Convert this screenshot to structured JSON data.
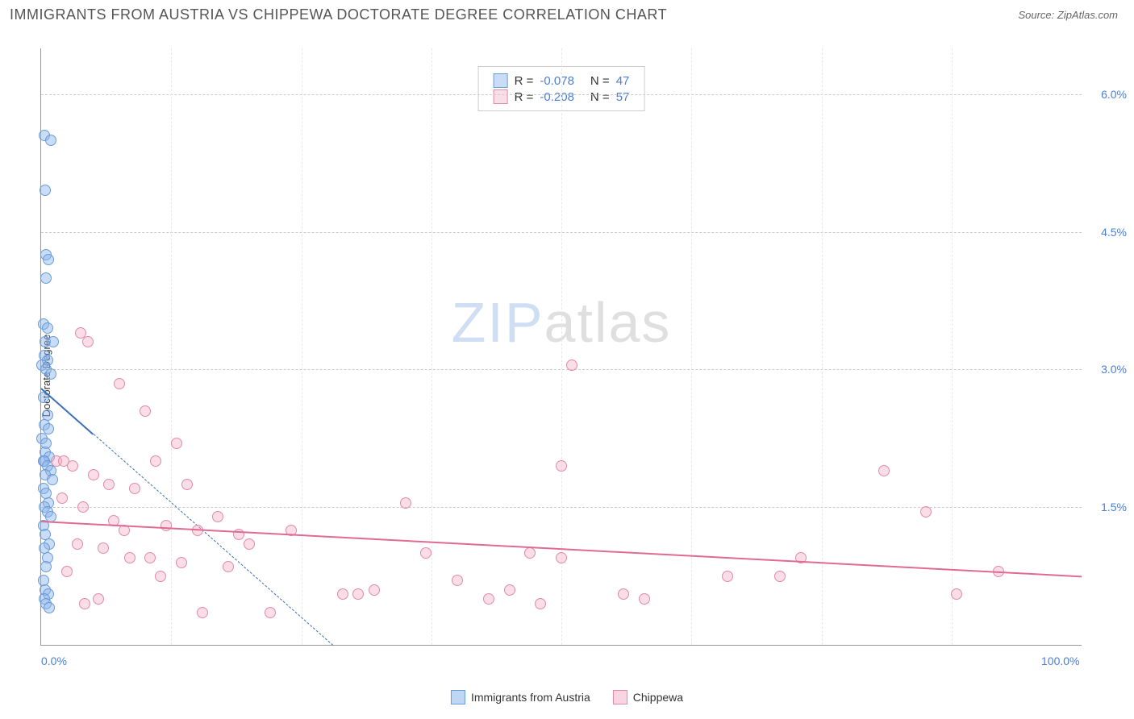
{
  "header": {
    "title": "IMMIGRANTS FROM AUSTRIA VS CHIPPEWA DOCTORATE DEGREE CORRELATION CHART",
    "source": "Source: ZipAtlas.com"
  },
  "ylabel": "Doctorate Degree",
  "watermark": {
    "zip": "ZIP",
    "atlas": "atlas"
  },
  "chart": {
    "type": "scatter",
    "xlim": [
      0,
      100
    ],
    "ylim": [
      0,
      6.5
    ],
    "background_color": "#ffffff",
    "grid_color": "#cccccc",
    "grid_color_v": "#e8e8e8",
    "xticks": [
      {
        "x": 0,
        "label": "0.0%"
      },
      {
        "x": 100,
        "label": "100.0%"
      }
    ],
    "vgrid_x": [
      12.5,
      25,
      37.5,
      50,
      62.5,
      75,
      87.5
    ],
    "yticks": [
      {
        "y": 1.5,
        "label": "1.5%"
      },
      {
        "y": 3.0,
        "label": "3.0%"
      },
      {
        "y": 4.5,
        "label": "4.5%"
      },
      {
        "y": 6.0,
        "label": "6.0%"
      }
    ],
    "series": [
      {
        "name": "Immigrants from Austria",
        "fill": "rgba(138,180,235,0.45)",
        "stroke": "#6b9bd8",
        "trend_color": "#3b6fb5",
        "R": "-0.078",
        "N": "47",
        "trend": {
          "x1": 0,
          "y1": 2.8,
          "x2": 5,
          "y2": 2.3
        },
        "trend_dash": {
          "x1": 5,
          "y1": 2.3,
          "x2": 28,
          "y2": 0
        },
        "points": [
          [
            0.3,
            5.55
          ],
          [
            0.9,
            5.5
          ],
          [
            0.4,
            4.95
          ],
          [
            0.5,
            4.25
          ],
          [
            0.7,
            4.2
          ],
          [
            0.5,
            4.0
          ],
          [
            0.2,
            3.5
          ],
          [
            0.6,
            3.45
          ],
          [
            0.4,
            3.3
          ],
          [
            1.2,
            3.3
          ],
          [
            0.3,
            3.15
          ],
          [
            0.6,
            3.1
          ],
          [
            0.1,
            3.05
          ],
          [
            0.5,
            3.0
          ],
          [
            0.9,
            2.95
          ],
          [
            0.2,
            2.7
          ],
          [
            0.6,
            2.5
          ],
          [
            0.3,
            2.4
          ],
          [
            0.7,
            2.35
          ],
          [
            0.1,
            2.25
          ],
          [
            0.5,
            2.2
          ],
          [
            0.4,
            2.1
          ],
          [
            0.8,
            2.05
          ],
          [
            0.2,
            2.0
          ],
          [
            0.3,
            2.0
          ],
          [
            0.6,
            1.95
          ],
          [
            0.9,
            1.9
          ],
          [
            0.4,
            1.85
          ],
          [
            1.1,
            1.8
          ],
          [
            0.2,
            1.7
          ],
          [
            0.5,
            1.65
          ],
          [
            0.7,
            1.55
          ],
          [
            0.3,
            1.5
          ],
          [
            0.6,
            1.45
          ],
          [
            0.9,
            1.4
          ],
          [
            0.2,
            1.3
          ],
          [
            0.4,
            1.2
          ],
          [
            0.8,
            1.1
          ],
          [
            0.3,
            1.05
          ],
          [
            0.6,
            0.95
          ],
          [
            0.5,
            0.85
          ],
          [
            0.2,
            0.7
          ],
          [
            0.4,
            0.6
          ],
          [
            0.7,
            0.55
          ],
          [
            0.3,
            0.5
          ],
          [
            0.5,
            0.45
          ],
          [
            0.8,
            0.4
          ]
        ]
      },
      {
        "name": "Chippewa",
        "fill": "rgba(245,170,195,0.4)",
        "stroke": "#e08ba8",
        "trend_color": "#e06a93",
        "R": "-0.208",
        "N": "57",
        "trend": {
          "x1": 0,
          "y1": 1.35,
          "x2": 100,
          "y2": 0.75
        },
        "points": [
          [
            3.8,
            3.4
          ],
          [
            1.5,
            2.0
          ],
          [
            2.2,
            2.0
          ],
          [
            4.5,
            3.3
          ],
          [
            51,
            3.05
          ],
          [
            7.5,
            2.85
          ],
          [
            10,
            2.55
          ],
          [
            13,
            2.2
          ],
          [
            81,
            1.9
          ],
          [
            50,
            1.95
          ],
          [
            85,
            1.45
          ],
          [
            11,
            2.0
          ],
          [
            3,
            1.95
          ],
          [
            5,
            1.85
          ],
          [
            6.5,
            1.75
          ],
          [
            9,
            1.7
          ],
          [
            14,
            1.75
          ],
          [
            17,
            1.4
          ],
          [
            2,
            1.6
          ],
          [
            4,
            1.5
          ],
          [
            7,
            1.35
          ],
          [
            12,
            1.3
          ],
          [
            15,
            1.25
          ],
          [
            19,
            1.2
          ],
          [
            24,
            1.25
          ],
          [
            22,
            0.35
          ],
          [
            3.5,
            1.1
          ],
          [
            6,
            1.05
          ],
          [
            8,
            1.25
          ],
          [
            10.5,
            0.95
          ],
          [
            13.5,
            0.9
          ],
          [
            18,
            0.85
          ],
          [
            29,
            0.55
          ],
          [
            30.5,
            0.55
          ],
          [
            32,
            0.6
          ],
          [
            35,
            1.55
          ],
          [
            37,
            1.0
          ],
          [
            40,
            0.7
          ],
          [
            43,
            0.5
          ],
          [
            45,
            0.6
          ],
          [
            47,
            1.0
          ],
          [
            48,
            0.45
          ],
          [
            50,
            0.95
          ],
          [
            56,
            0.55
          ],
          [
            58,
            0.5
          ],
          [
            66,
            0.75
          ],
          [
            71,
            0.75
          ],
          [
            73,
            0.95
          ],
          [
            92,
            0.8
          ],
          [
            88,
            0.55
          ],
          [
            2.5,
            0.8
          ],
          [
            4.2,
            0.45
          ],
          [
            5.5,
            0.5
          ],
          [
            8.5,
            0.95
          ],
          [
            11.5,
            0.75
          ],
          [
            15.5,
            0.35
          ],
          [
            20,
            1.1
          ]
        ]
      }
    ],
    "legend": [
      {
        "label": "Immigrants from Austria",
        "fill": "rgba(138,180,235,0.55)",
        "stroke": "#6b9bd8"
      },
      {
        "label": "Chippewa",
        "fill": "rgba(245,170,195,0.5)",
        "stroke": "#e08ba8"
      }
    ]
  }
}
